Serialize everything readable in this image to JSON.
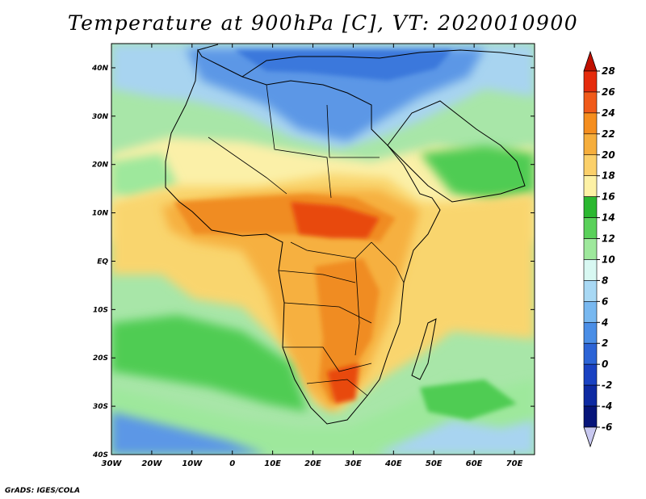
{
  "title": "Temperature at 900hPa [C], VT: 2020010900",
  "footer": "GrADS: IGES/COLA",
  "map": {
    "lon_range": [
      -30,
      75
    ],
    "lat_range": [
      -40,
      45
    ],
    "lon_ticks": [
      {
        "value": -30,
        "label": "30W"
      },
      {
        "value": -20,
        "label": "20W"
      },
      {
        "value": -10,
        "label": "10W"
      },
      {
        "value": 0,
        "label": "0"
      },
      {
        "value": 10,
        "label": "10E"
      },
      {
        "value": 20,
        "label": "20E"
      },
      {
        "value": 30,
        "label": "30E"
      },
      {
        "value": 40,
        "label": "40E"
      },
      {
        "value": 50,
        "label": "50E"
      },
      {
        "value": 60,
        "label": "60E"
      },
      {
        "value": 70,
        "label": "70E"
      }
    ],
    "lat_ticks": [
      {
        "value": 40,
        "label": "40N"
      },
      {
        "value": 30,
        "label": "30N"
      },
      {
        "value": 20,
        "label": "20N"
      },
      {
        "value": 10,
        "label": "10N"
      },
      {
        "value": 0,
        "label": "EQ"
      },
      {
        "value": -10,
        "label": "10S"
      },
      {
        "value": -20,
        "label": "20S"
      },
      {
        "value": -30,
        "label": "30S"
      },
      {
        "value": -40,
        "label": "40S"
      }
    ]
  },
  "colorbar": {
    "levels": [
      {
        "label": "28",
        "color": "#a50000"
      },
      {
        "label": "26",
        "color": "#e52b0c"
      },
      {
        "label": "24",
        "color": "#f05a1a"
      },
      {
        "label": "22",
        "color": "#f58e1e"
      },
      {
        "label": "20",
        "color": "#f6ae3c"
      },
      {
        "label": "18",
        "color": "#fbd06a"
      },
      {
        "label": "16",
        "color": "#fdf1a5"
      },
      {
        "label": "14",
        "color": "#2bb830"
      },
      {
        "label": "12",
        "color": "#5ad15a"
      },
      {
        "label": "10",
        "color": "#9ee89c"
      },
      {
        "label": "8",
        "color": "#d8f8f2"
      },
      {
        "label": "6",
        "color": "#a8d8f4"
      },
      {
        "label": "4",
        "color": "#78b8f0"
      },
      {
        "label": "2",
        "color": "#4a8ee6"
      },
      {
        "label": "0",
        "color": "#2c64d6"
      },
      {
        "label": "-2",
        "color": "#1a42c2"
      },
      {
        "label": "-4",
        "color": "#0e2aa2"
      },
      {
        "label": "-6",
        "color": "#07157a"
      }
    ],
    "top_color": "#c01000",
    "bottom_color": "#c8c8f0"
  },
  "colors": {
    "cold_deep": "#1a5fd0",
    "cold": "#5b97e6",
    "cool": "#a8d4f0",
    "mild": "#aeeaa8",
    "green": "#4fcc52",
    "green_dark": "#27b52d",
    "pale_yellow": "#fbf0a8",
    "yellow": "#f9d56e",
    "orange_light": "#f6b040",
    "orange": "#f08c22",
    "red": "#e8480e"
  }
}
